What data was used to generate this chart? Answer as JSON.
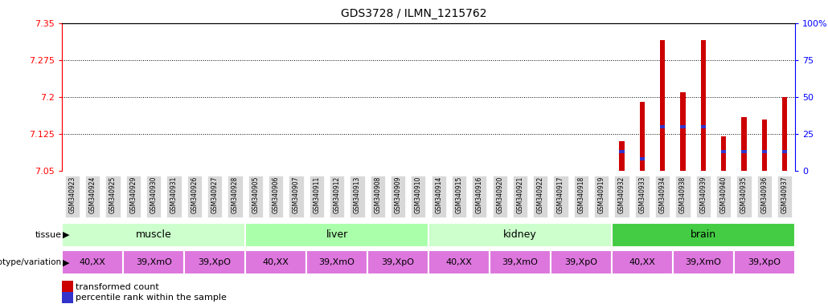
{
  "title": "GDS3728 / ILMN_1215762",
  "samples": [
    "GSM340923",
    "GSM340924",
    "GSM340925",
    "GSM340929",
    "GSM340930",
    "GSM340931",
    "GSM340926",
    "GSM340927",
    "GSM340928",
    "GSM340905",
    "GSM340906",
    "GSM340907",
    "GSM340911",
    "GSM340912",
    "GSM340913",
    "GSM340908",
    "GSM340909",
    "GSM340910",
    "GSM340914",
    "GSM340915",
    "GSM340916",
    "GSM340920",
    "GSM340921",
    "GSM340922",
    "GSM340917",
    "GSM340918",
    "GSM340919",
    "GSM340932",
    "GSM340933",
    "GSM340934",
    "GSM340938",
    "GSM340939",
    "GSM340940",
    "GSM340935",
    "GSM340936",
    "GSM340937"
  ],
  "red_values": [
    7.05,
    7.05,
    7.05,
    7.05,
    7.05,
    7.05,
    7.05,
    7.05,
    7.05,
    7.05,
    7.05,
    7.05,
    7.05,
    7.05,
    7.05,
    7.05,
    7.05,
    7.05,
    7.05,
    7.05,
    7.05,
    7.05,
    7.05,
    7.05,
    7.05,
    7.05,
    7.05,
    7.11,
    7.19,
    7.315,
    7.21,
    7.315,
    7.12,
    7.16,
    7.155,
    7.2
  ],
  "blue_pct": [
    0,
    0,
    0,
    0,
    0,
    0,
    0,
    0,
    0,
    0,
    0,
    0,
    0,
    0,
    0,
    0,
    0,
    0,
    0,
    0,
    0,
    0,
    0,
    0,
    0,
    0,
    0,
    13,
    8,
    30,
    30,
    30,
    13,
    13,
    13,
    13
  ],
  "ylim_left": [
    7.05,
    7.35
  ],
  "yticks_left": [
    7.05,
    7.125,
    7.2,
    7.275,
    7.35
  ],
  "ylim_right": [
    0,
    100
  ],
  "yticks_right": [
    0,
    25,
    50,
    75,
    100
  ],
  "left_axis_color": "red",
  "right_axis_color": "blue",
  "bar_color_red": "#CC0000",
  "bar_color_blue": "#3333CC",
  "tissues": [
    {
      "label": "muscle",
      "start": 0,
      "end": 9,
      "color": "#CCFFCC"
    },
    {
      "label": "liver",
      "start": 9,
      "end": 18,
      "color": "#AAFFAA"
    },
    {
      "label": "kidney",
      "start": 18,
      "end": 27,
      "color": "#CCFFCC"
    },
    {
      "label": "brain",
      "start": 27,
      "end": 36,
      "color": "#44CC44"
    }
  ],
  "genotypes": [
    {
      "label": "40,XX",
      "start": 0,
      "end": 3
    },
    {
      "label": "39,XmO",
      "start": 3,
      "end": 6
    },
    {
      "label": "39,XpO",
      "start": 6,
      "end": 9
    },
    {
      "label": "40,XX",
      "start": 9,
      "end": 12
    },
    {
      "label": "39,XmO",
      "start": 12,
      "end": 15
    },
    {
      "label": "39,XpO",
      "start": 15,
      "end": 18
    },
    {
      "label": "40,XX",
      "start": 18,
      "end": 21
    },
    {
      "label": "39,XmO",
      "start": 21,
      "end": 24
    },
    {
      "label": "39,XpO",
      "start": 24,
      "end": 27
    },
    {
      "label": "40,XX",
      "start": 27,
      "end": 30
    },
    {
      "label": "39,XmO",
      "start": 30,
      "end": 33
    },
    {
      "label": "39,XpO",
      "start": 33,
      "end": 36
    }
  ],
  "geno_color_light": "#EE88EE",
  "geno_color_mid": "#DD66DD",
  "geno_color_dark": "#CC44CC",
  "legend_red": "transformed count",
  "legend_blue": "percentile rank within the sample",
  "xtick_bg": "#DDDDDD",
  "bar_width": 0.25
}
